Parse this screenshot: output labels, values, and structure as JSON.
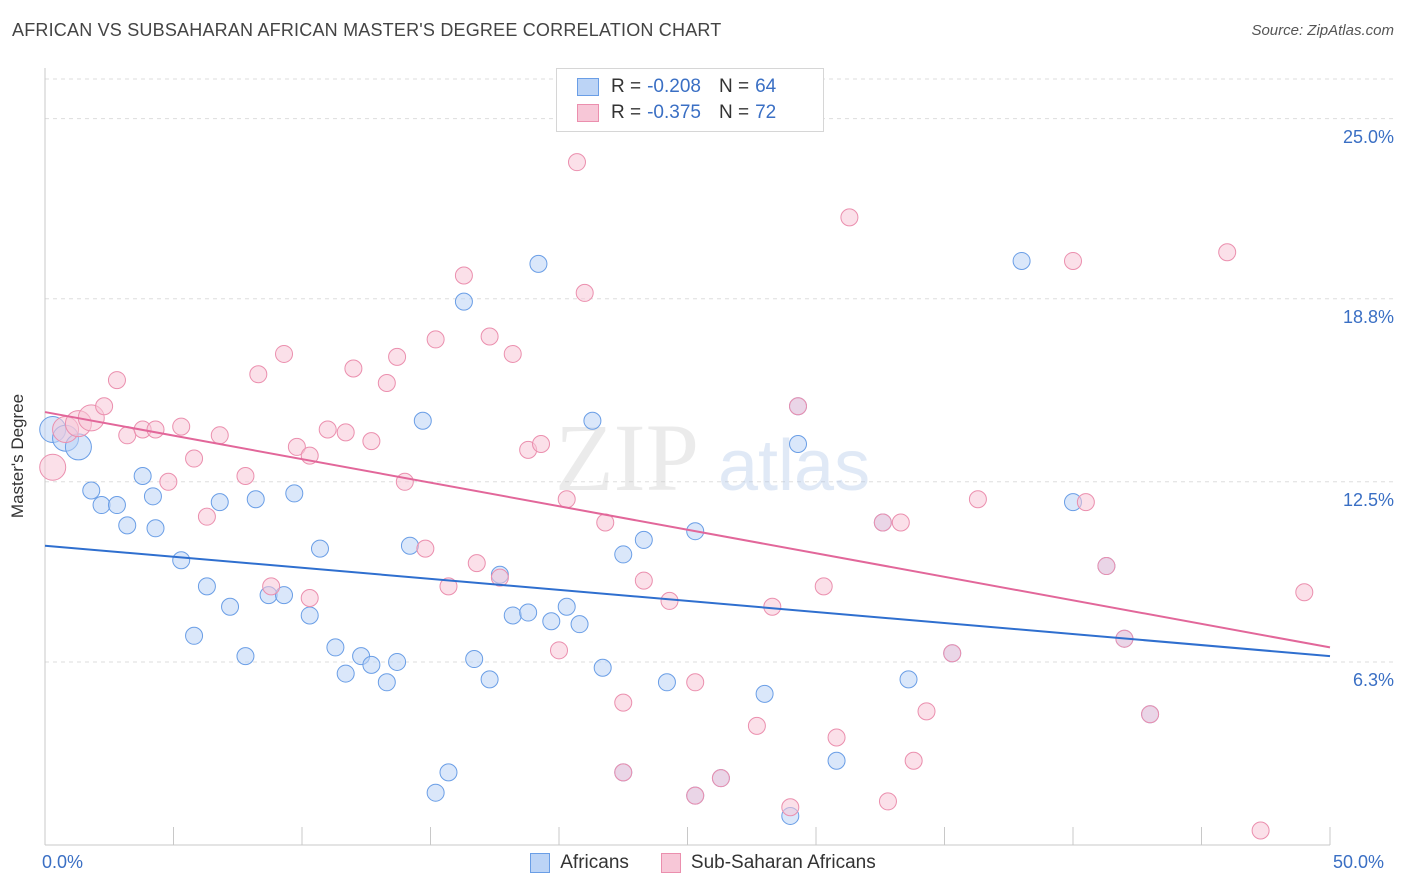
{
  "title": "AFRICAN VS SUBSAHARAN AFRICAN MASTER'S DEGREE CORRELATION CHART",
  "source": "Source: ZipAtlas.com",
  "watermark": {
    "zip": "ZIP",
    "atlas": "atlas"
  },
  "colors": {
    "blue": "#6a9ee6",
    "blue_fill": "#bcd4f6",
    "blue_line": "#2f6fcf",
    "pink": "#eb8fae",
    "pink_fill": "#f7c7d7",
    "pink_line": "#e2679a",
    "overlap_fill": "#b79ab8",
    "axis_text": "#3a6fc4",
    "grid": "#dddddd"
  },
  "legend": {
    "r_label": "R =",
    "n_label": "N =",
    "africans": {
      "r": "-0.208",
      "n": "64"
    },
    "subsaharan": {
      "r": "-0.375",
      "n": "72"
    }
  },
  "bottom_legend": {
    "africans": "Africans",
    "subsaharan": "Sub-Saharan Africans"
  },
  "chart_data": {
    "type": "scatter",
    "title": "AFRICAN VS SUBSAHARAN AFRICAN MASTER'S DEGREE CORRELATION CHART",
    "xlabel": "",
    "ylabel": "Master's Degree",
    "xlim": [
      0,
      50
    ],
    "ylim": [
      0,
      26.5
    ],
    "x_tick_labels": [
      "0.0%",
      "50.0%"
    ],
    "y_ticks": [
      6.3,
      12.5,
      18.8,
      25.0
    ],
    "y_tick_labels": [
      "6.3%",
      "12.5%",
      "18.8%",
      "25.0%"
    ],
    "grid": true,
    "legend_position": "top-center",
    "series": [
      {
        "name": "Africans",
        "color": "#6a9ee6",
        "trend": {
          "x": [
            0,
            50
          ],
          "y": [
            10.3,
            6.5
          ]
        },
        "points": [
          [
            0.3,
            14.3
          ],
          [
            0.8,
            14.0
          ],
          [
            1.3,
            13.7
          ],
          [
            1.8,
            12.2
          ],
          [
            2.2,
            11.7
          ],
          [
            2.8,
            11.7
          ],
          [
            3.2,
            11.0
          ],
          [
            3.8,
            12.7
          ],
          [
            4.2,
            12.0
          ],
          [
            4.3,
            10.9
          ],
          [
            5.3,
            9.8
          ],
          [
            5.8,
            7.2
          ],
          [
            6.3,
            8.9
          ],
          [
            6.8,
            11.8
          ],
          [
            7.2,
            8.2
          ],
          [
            7.8,
            6.5
          ],
          [
            8.2,
            11.9
          ],
          [
            8.7,
            8.6
          ],
          [
            9.3,
            8.6
          ],
          [
            9.7,
            12.1
          ],
          [
            10.3,
            7.9
          ],
          [
            10.7,
            10.2
          ],
          [
            11.3,
            6.8
          ],
          [
            11.7,
            5.9
          ],
          [
            12.3,
            6.5
          ],
          [
            12.7,
            6.2
          ],
          [
            13.3,
            5.6
          ],
          [
            13.7,
            6.3
          ],
          [
            14.2,
            10.3
          ],
          [
            14.7,
            14.6
          ],
          [
            15.2,
            1.8
          ],
          [
            15.7,
            2.5
          ],
          [
            16.3,
            18.7
          ],
          [
            16.7,
            6.4
          ],
          [
            17.3,
            5.7
          ],
          [
            17.7,
            9.3
          ],
          [
            18.2,
            7.9
          ],
          [
            18.8,
            8.0
          ],
          [
            19.2,
            20.0
          ],
          [
            19.7,
            7.7
          ],
          [
            20.3,
            8.2
          ],
          [
            20.8,
            7.6
          ],
          [
            21.3,
            14.6
          ],
          [
            21.7,
            6.1
          ],
          [
            22.5,
            10.0
          ],
          [
            23.3,
            10.5
          ],
          [
            24.2,
            5.6
          ],
          [
            25.3,
            10.8
          ],
          [
            28.0,
            5.2
          ],
          [
            29.0,
            1.0
          ],
          [
            29.3,
            13.8
          ],
          [
            30.8,
            2.9
          ],
          [
            32.6,
            11.1
          ],
          [
            33.6,
            5.7
          ],
          [
            35.3,
            6.6
          ],
          [
            38.0,
            20.1
          ],
          [
            40.0,
            11.8
          ],
          [
            41.3,
            9.6
          ],
          [
            42.0,
            7.1
          ],
          [
            43.0,
            4.5
          ],
          [
            22.5,
            2.5
          ],
          [
            25.3,
            1.7
          ],
          [
            26.3,
            2.3
          ],
          [
            29.3,
            15.1
          ]
        ]
      },
      {
        "name": "Sub-Saharan Africans",
        "color": "#eb8fae",
        "trend": {
          "x": [
            0,
            50
          ],
          "y": [
            14.9,
            6.8
          ]
        },
        "points": [
          [
            0.3,
            13.0
          ],
          [
            0.8,
            14.3
          ],
          [
            1.3,
            14.5
          ],
          [
            1.8,
            14.7
          ],
          [
            2.3,
            15.1
          ],
          [
            2.8,
            16.0
          ],
          [
            3.2,
            14.1
          ],
          [
            3.8,
            14.3
          ],
          [
            4.3,
            14.3
          ],
          [
            4.8,
            12.5
          ],
          [
            5.3,
            14.4
          ],
          [
            5.8,
            13.3
          ],
          [
            6.3,
            11.3
          ],
          [
            6.8,
            14.1
          ],
          [
            7.8,
            12.7
          ],
          [
            8.3,
            16.2
          ],
          [
            8.8,
            8.9
          ],
          [
            9.3,
            16.9
          ],
          [
            9.8,
            13.7
          ],
          [
            10.3,
            13.4
          ],
          [
            10.3,
            8.5
          ],
          [
            11.0,
            14.3
          ],
          [
            11.7,
            14.2
          ],
          [
            12.0,
            16.4
          ],
          [
            12.7,
            13.9
          ],
          [
            13.3,
            15.9
          ],
          [
            13.7,
            16.8
          ],
          [
            14.0,
            12.5
          ],
          [
            14.8,
            10.2
          ],
          [
            15.2,
            17.4
          ],
          [
            15.7,
            8.9
          ],
          [
            16.3,
            19.6
          ],
          [
            16.8,
            9.7
          ],
          [
            17.3,
            17.5
          ],
          [
            17.7,
            9.2
          ],
          [
            18.2,
            16.9
          ],
          [
            18.8,
            13.6
          ],
          [
            19.3,
            13.8
          ],
          [
            20.0,
            6.7
          ],
          [
            20.3,
            11.9
          ],
          [
            20.7,
            23.5
          ],
          [
            21.0,
            19.0
          ],
          [
            21.8,
            11.1
          ],
          [
            22.5,
            4.9
          ],
          [
            23.3,
            9.1
          ],
          [
            24.3,
            8.4
          ],
          [
            25.3,
            5.6
          ],
          [
            27.7,
            4.1
          ],
          [
            28.3,
            8.2
          ],
          [
            29.0,
            1.3
          ],
          [
            30.3,
            8.9
          ],
          [
            30.8,
            3.7
          ],
          [
            31.3,
            21.6
          ],
          [
            32.8,
            1.5
          ],
          [
            33.3,
            11.1
          ],
          [
            33.8,
            2.9
          ],
          [
            34.3,
            4.6
          ],
          [
            35.3,
            6.6
          ],
          [
            36.3,
            11.9
          ],
          [
            40.0,
            20.1
          ],
          [
            40.5,
            11.8
          ],
          [
            41.3,
            9.6
          ],
          [
            42.0,
            7.1
          ],
          [
            43.0,
            4.5
          ],
          [
            46.0,
            20.4
          ],
          [
            47.3,
            0.5
          ],
          [
            49.0,
            8.7
          ],
          [
            22.5,
            2.5
          ],
          [
            25.3,
            1.7
          ],
          [
            26.3,
            2.3
          ],
          [
            29.3,
            15.1
          ],
          [
            32.6,
            11.1
          ]
        ]
      }
    ]
  }
}
